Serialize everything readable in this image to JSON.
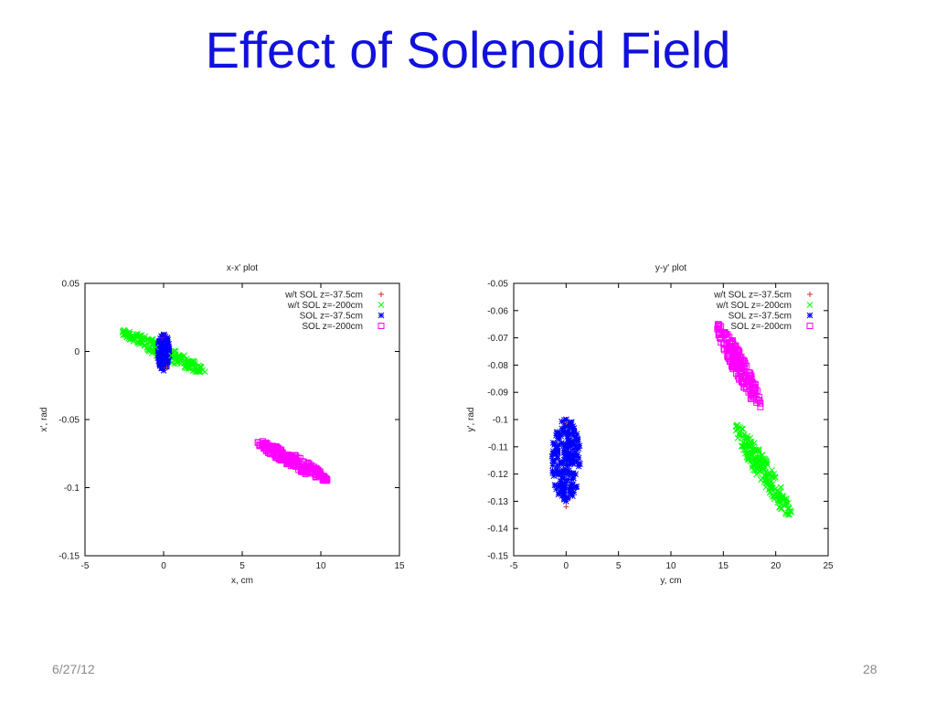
{
  "slide": {
    "title": "Effect of Solenoid Field",
    "date": "6/27/12",
    "page_number": "28"
  },
  "colors": {
    "wt_sol_375": "#cc3333",
    "wt_sol_200": "#00ff00",
    "sol_375": "#0000ff",
    "sol_200": "#ff00ff",
    "title_blue": "#1111dd"
  },
  "chart_data": [
    {
      "type": "scatter",
      "title": "x-x' plot",
      "xlabel": "x, cm",
      "ylabel": "x', rad",
      "xlim": [
        -5,
        15
      ],
      "ylim": [
        -0.15,
        0.05
      ],
      "xticks": [
        -5,
        0,
        5,
        10,
        15
      ],
      "yticks": [
        -0.15,
        -0.1,
        -0.05,
        0,
        0.05
      ],
      "xtick_labels": [
        "-5",
        "0",
        "5",
        "10",
        "15"
      ],
      "ytick_labels": [
        "-0.15",
        "-0.1",
        "-0.05",
        "0",
        "0.05"
      ],
      "legend_position": "top-right",
      "grid": false,
      "series": [
        {
          "name": "w/t SOL z=-37.5cm",
          "marker": "+",
          "color": "#cc3333",
          "points": [
            [
              0.1,
              0.012
            ],
            [
              -0.1,
              0.01
            ],
            [
              0.2,
              -0.012
            ]
          ]
        },
        {
          "name": "w/t SOL z=-200cm",
          "marker": "x",
          "color": "#00ff00",
          "points": [
            [
              -2.6,
              0.014
            ],
            [
              -2.0,
              0.011
            ],
            [
              -1.5,
              0.009
            ],
            [
              -1.0,
              0.006
            ],
            [
              -0.5,
              0.003
            ],
            [
              0.5,
              -0.003
            ],
            [
              1.0,
              -0.006
            ],
            [
              1.5,
              -0.009
            ],
            [
              2.0,
              -0.012
            ],
            [
              2.3,
              -0.014
            ],
            [
              -1.2,
              0.005
            ],
            [
              1.2,
              -0.005
            ]
          ]
        },
        {
          "name": "SOL z=-37.5cm",
          "marker": "*",
          "color": "#0000ff",
          "points": [
            [
              0.0,
              0.012
            ],
            [
              0.05,
              0.008
            ],
            [
              -0.05,
              0.004
            ],
            [
              0.0,
              0.0
            ],
            [
              0.05,
              -0.004
            ],
            [
              -0.05,
              -0.008
            ],
            [
              0.0,
              -0.014
            ],
            [
              0.1,
              0.002
            ],
            [
              -0.1,
              -0.002
            ]
          ]
        },
        {
          "name": "SOL z=-200cm",
          "marker": "square",
          "color": "#ff00ff",
          "points": [
            [
              6.0,
              -0.067
            ],
            [
              6.5,
              -0.07
            ],
            [
              7.0,
              -0.073
            ],
            [
              7.5,
              -0.076
            ],
            [
              8.0,
              -0.079
            ],
            [
              8.5,
              -0.082
            ],
            [
              9.0,
              -0.085
            ],
            [
              9.5,
              -0.088
            ],
            [
              10.0,
              -0.091
            ],
            [
              10.4,
              -0.094
            ],
            [
              7.2,
              -0.072
            ],
            [
              8.8,
              -0.086
            ]
          ]
        }
      ]
    },
    {
      "type": "scatter",
      "title": "y-y' plot",
      "xlabel": "y, cm",
      "ylabel": "y', rad",
      "xlim": [
        -5,
        25
      ],
      "ylim": [
        -0.15,
        -0.05
      ],
      "xticks": [
        -5,
        0,
        5,
        10,
        15,
        20,
        25
      ],
      "yticks": [
        -0.15,
        -0.14,
        -0.13,
        -0.12,
        -0.11,
        -0.1,
        -0.09,
        -0.08,
        -0.07,
        -0.06,
        -0.05
      ],
      "xtick_labels": [
        "-5",
        "0",
        "5",
        "10",
        "15",
        "20",
        "25"
      ],
      "ytick_labels": [
        "-0.15",
        "-0.14",
        "-0.13",
        "-0.12",
        "-0.11",
        "-0.1",
        "-0.09",
        "-0.08",
        "-0.07",
        "-0.06",
        "-0.05"
      ],
      "legend_position": "top-right",
      "grid": false,
      "series": [
        {
          "name": "w/t SOL z=-37.5cm",
          "marker": "+",
          "color": "#cc3333",
          "points": [
            [
              0.0,
              -0.101
            ],
            [
              0.0,
              -0.132
            ]
          ]
        },
        {
          "name": "w/t SOL z=-200cm",
          "marker": "x",
          "color": "#00ff00",
          "points": [
            [
              16.3,
              -0.102
            ],
            [
              17.0,
              -0.107
            ],
            [
              17.5,
              -0.11
            ],
            [
              18.0,
              -0.114
            ],
            [
              18.5,
              -0.117
            ],
            [
              19.0,
              -0.121
            ],
            [
              19.5,
              -0.124
            ],
            [
              20.0,
              -0.127
            ],
            [
              20.5,
              -0.13
            ],
            [
              21.5,
              -0.134
            ]
          ]
        },
        {
          "name": "SOL z=-37.5cm",
          "marker": "*",
          "color": "#0000ff",
          "points": [
            [
              0.0,
              -0.1
            ],
            [
              0.05,
              -0.105
            ],
            [
              -0.05,
              -0.11
            ],
            [
              0.0,
              -0.115
            ],
            [
              0.05,
              -0.12
            ],
            [
              -0.05,
              -0.125
            ],
            [
              0.0,
              -0.13
            ],
            [
              0.1,
              -0.117
            ],
            [
              -0.1,
              -0.112
            ]
          ]
        },
        {
          "name": "SOL z=-200cm",
          "marker": "square",
          "color": "#ff00ff",
          "points": [
            [
              14.5,
              -0.065
            ],
            [
              15.0,
              -0.069
            ],
            [
              15.5,
              -0.073
            ],
            [
              16.0,
              -0.077
            ],
            [
              16.5,
              -0.081
            ],
            [
              17.0,
              -0.085
            ],
            [
              17.5,
              -0.088
            ],
            [
              18.0,
              -0.091
            ],
            [
              18.5,
              -0.094
            ],
            [
              15.8,
              -0.074
            ],
            [
              17.2,
              -0.086
            ]
          ]
        }
      ]
    }
  ]
}
